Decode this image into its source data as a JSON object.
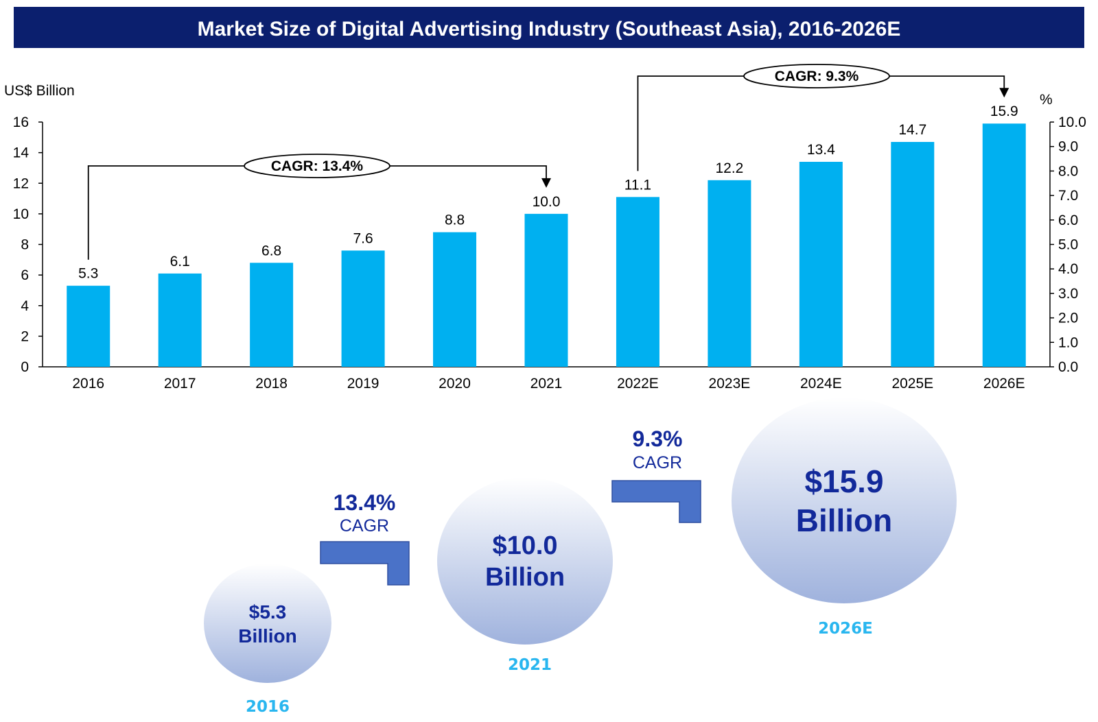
{
  "title": "Market Size of Digital Advertising Industry (Southeast Asia), 2016-2026E",
  "colors": {
    "title_bg": "#0b1f6e",
    "bar": "#00b0f0",
    "bubble_top": "#ffffff",
    "bubble_bottom": "#9fb2dd",
    "bubble_text": "#12299a",
    "bubble_year": "#29b6ef",
    "step_arrow": "#4a72c8"
  },
  "chart_data": {
    "type": "bar",
    "categories": [
      "2016",
      "2017",
      "2018",
      "2019",
      "2020",
      "2021",
      "2022E",
      "2023E",
      "2024E",
      "2025E",
      "2026E"
    ],
    "values": [
      5.3,
      6.1,
      6.8,
      7.6,
      8.8,
      10.0,
      11.1,
      12.2,
      13.4,
      14.7,
      15.9
    ],
    "value_labels": [
      "5.3",
      "6.1",
      "6.8",
      "7.6",
      "8.8",
      "10.0",
      "11.1",
      "12.2",
      "13.4",
      "14.7",
      "15.9"
    ],
    "ylabel": "US$ Billion",
    "ylim": [
      0,
      16
    ],
    "y_ticks": [
      "0",
      "2",
      "4",
      "6",
      "8",
      "10",
      "12",
      "14",
      "16"
    ],
    "y2label": "%",
    "y2lim": [
      0,
      10
    ],
    "y2_ticks": [
      "0.0",
      "1.0",
      "2.0",
      "3.0",
      "4.0",
      "5.0",
      "6.0",
      "7.0",
      "8.0",
      "9.0",
      "10.0"
    ],
    "grid": false,
    "annotations": [
      {
        "text": "CAGR: 13.4%",
        "from": "2016",
        "to": "2021"
      },
      {
        "text": "CAGR: 9.3%",
        "from": "2022E",
        "to": "2026E"
      }
    ]
  },
  "summary": {
    "bubbles": [
      {
        "amount": "$5.3",
        "unit": "Billion",
        "year": "2016"
      },
      {
        "amount": "$10.0",
        "unit": "Billion",
        "year": "2021"
      },
      {
        "amount": "$15.9",
        "unit": "Billion",
        "year": "2026E"
      }
    ],
    "growth": [
      {
        "pct": "13.4%",
        "label": "CAGR"
      },
      {
        "pct": "9.3%",
        "label": "CAGR"
      }
    ]
  }
}
